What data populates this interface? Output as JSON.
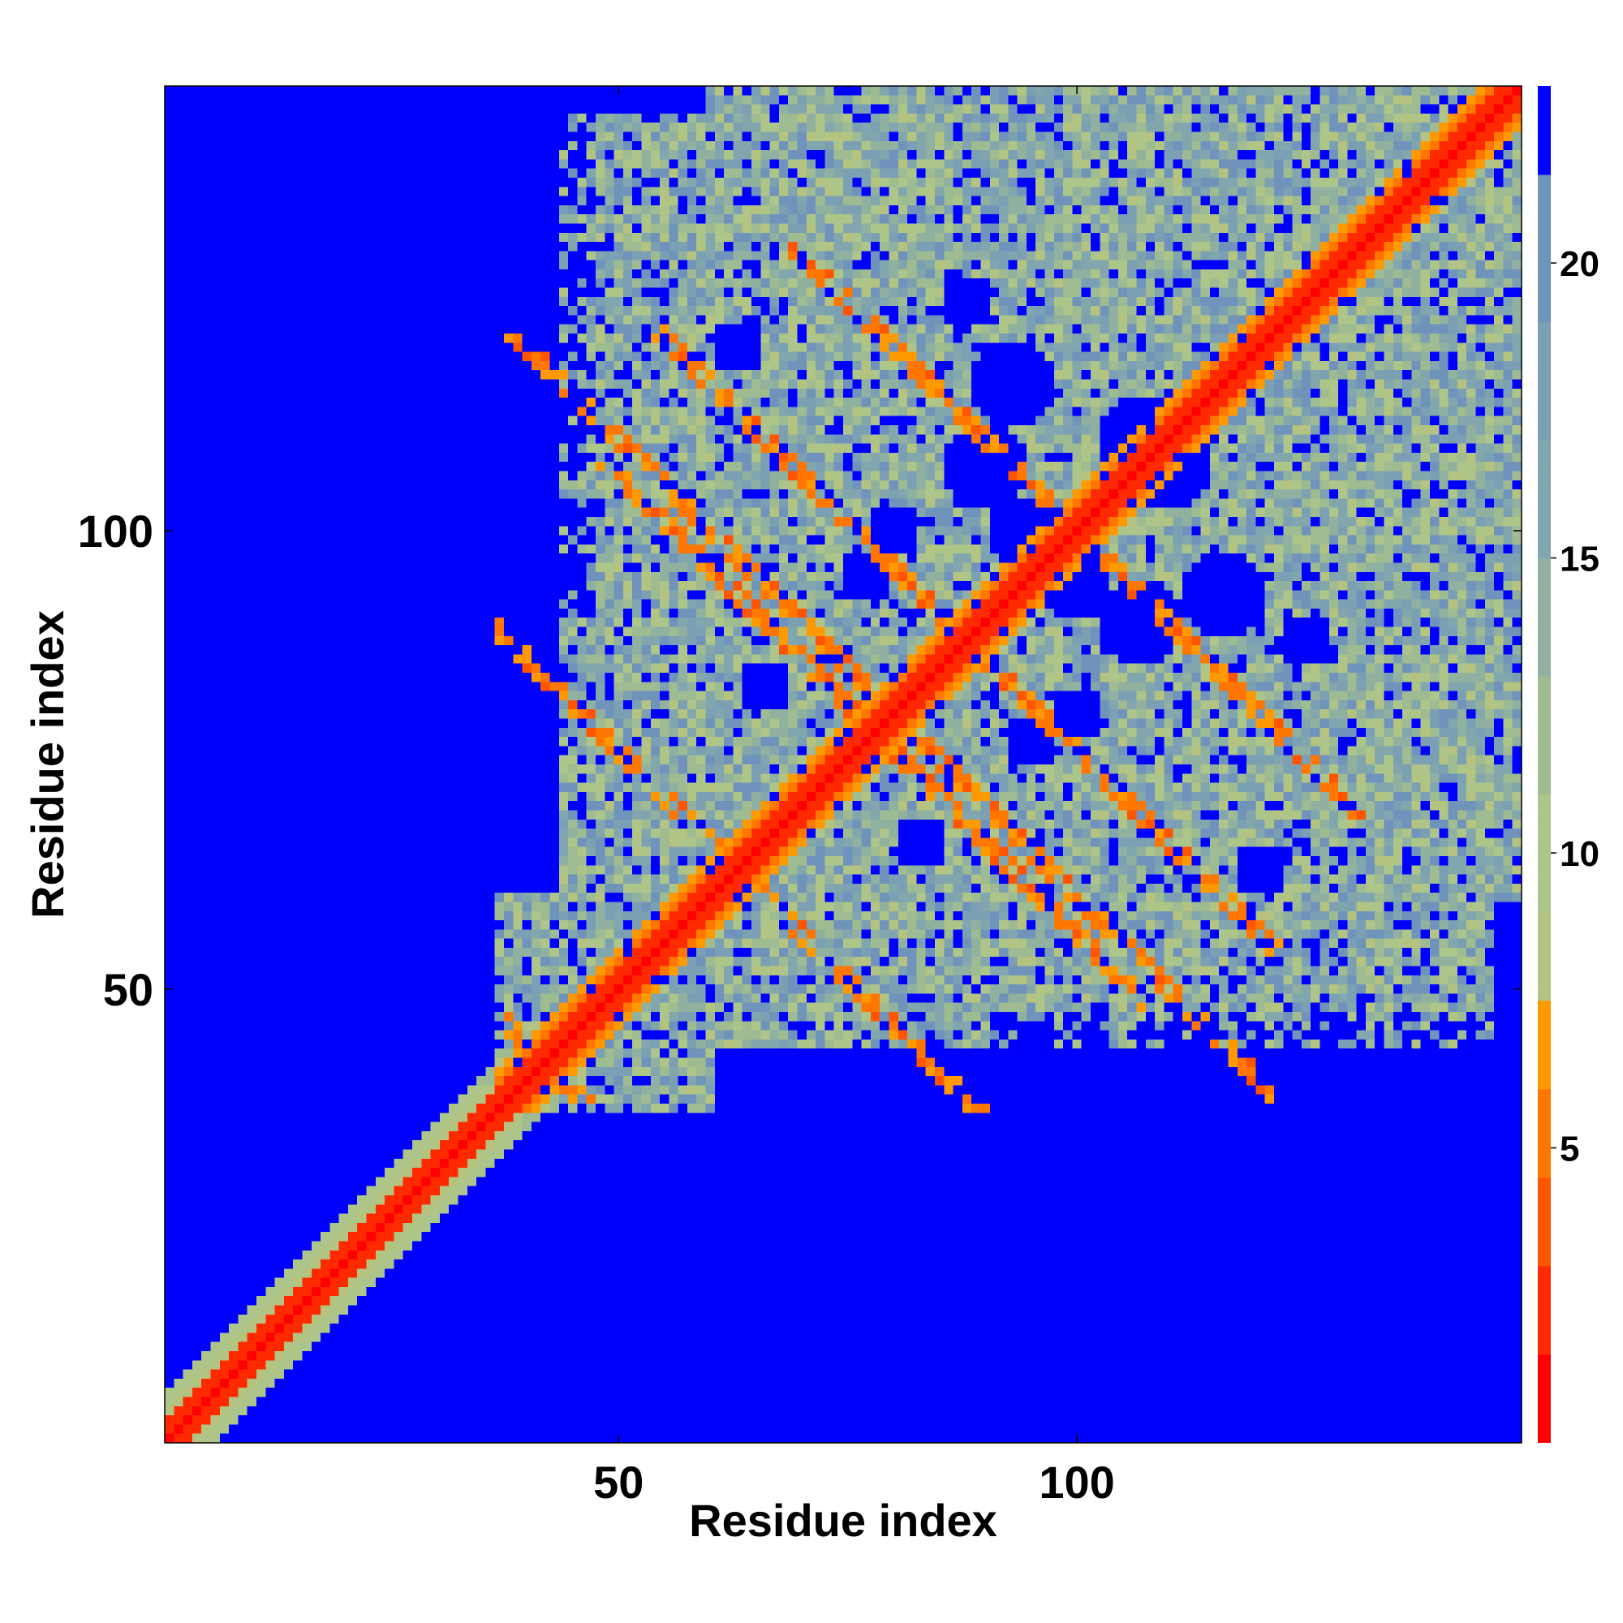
{
  "chart_data": {
    "type": "heatmap",
    "title": "",
    "xlabel": "Residue index",
    "ylabel": "Residue index",
    "n_residues": 148,
    "xlim": [
      1,
      148
    ],
    "ylim": [
      1,
      148
    ],
    "x_ticks": [
      50,
      100
    ],
    "y_ticks": [
      50,
      100
    ],
    "colorbar": {
      "ticks": [
        5,
        10,
        15,
        20
      ],
      "range": [
        0,
        23
      ],
      "levels": [
        {
          "max": 1.5,
          "color": "#ff0000"
        },
        {
          "max": 3.0,
          "color": "#ff2a00"
        },
        {
          "max": 4.5,
          "color": "#ff5500"
        },
        {
          "max": 6.0,
          "color": "#ff7700"
        },
        {
          "max": 7.5,
          "color": "#ff9900"
        },
        {
          "max": 9.0,
          "color": "#b4c480"
        },
        {
          "max": 11.0,
          "color": "#aec58a"
        },
        {
          "max": 13.0,
          "color": "#9fbb92"
        },
        {
          "max": 15.0,
          "color": "#90b0a0"
        },
        {
          "max": 17.0,
          "color": "#82a6ad"
        },
        {
          "max": 19.0,
          "color": "#7b9fb3"
        },
        {
          "max": 21.5,
          "color": "#6f93ba"
        },
        {
          "max": 23.0,
          "color": "#0000ff"
        }
      ]
    },
    "description_values": {
      "diagonal_distance": 0,
      "background_distance": 23,
      "cutoff": 21.5
    },
    "colors": {
      "background": "#0000ff",
      "contact": "#ff0000",
      "mid": "#a8c08c"
    }
  }
}
